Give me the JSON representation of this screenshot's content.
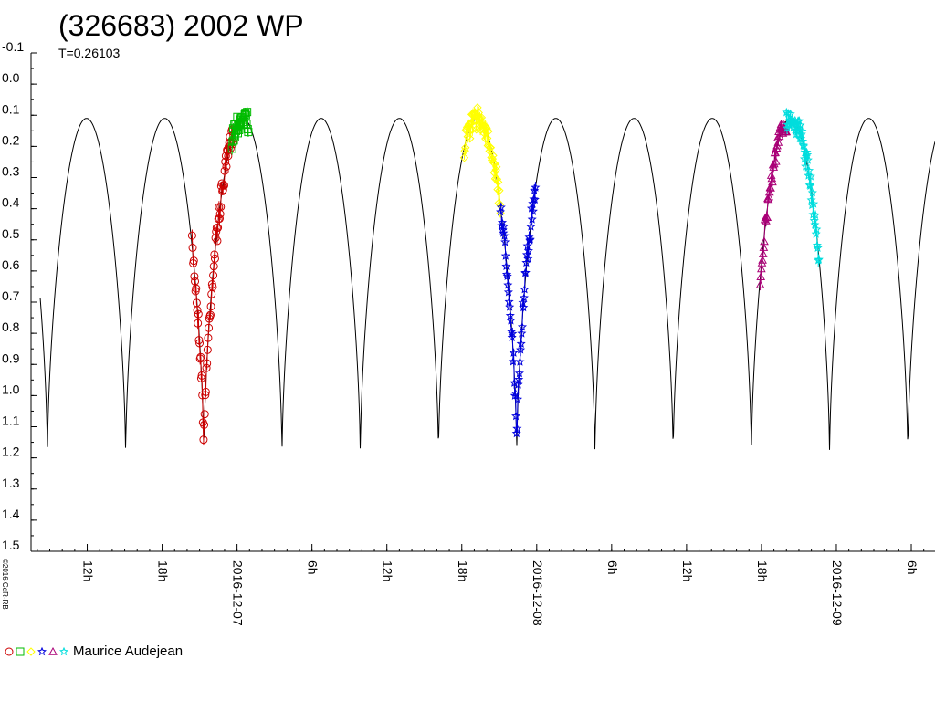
{
  "chart_data": {
    "type": "scatter",
    "title": "(326683) 2002 WP",
    "subtitle": "T=0.26103",
    "copyright": "©2016 CdR-RB",
    "ylim": [
      -0.1,
      1.5
    ],
    "y_inverted": true,
    "y_ticks": [
      "-0.1",
      "0.0",
      "0.1",
      "0.2",
      "0.3",
      "0.4",
      "0.5",
      "0.6",
      "0.7",
      "0.8",
      "0.9",
      "1.0",
      "1.1",
      "1.2",
      "1.3",
      "1.4",
      "1.5"
    ],
    "xlim_hours": [
      7.5,
      79.9
    ],
    "x_ticks": [
      {
        "hour": 12,
        "label": "12h"
      },
      {
        "hour": 18,
        "label": "18h"
      },
      {
        "hour": 24,
        "label": "2016-12-07"
      },
      {
        "hour": 30,
        "label": "6h"
      },
      {
        "hour": 36,
        "label": "12h"
      },
      {
        "hour": 42,
        "label": "18h"
      },
      {
        "hour": 48,
        "label": "2016-12-08"
      },
      {
        "hour": 54,
        "label": "6h"
      },
      {
        "hour": 60,
        "label": "12h"
      },
      {
        "hour": 66,
        "label": "18h"
      },
      {
        "hour": 72,
        "label": "2016-12-09"
      },
      {
        "hour": 78,
        "label": "6h"
      }
    ],
    "model": {
      "period_hours": 6.26472,
      "minimum_hours": 8.81,
      "amplitude": 1.09,
      "mag_min": 0.1,
      "mag_max": 1.2
    },
    "legend": {
      "label": "Maurice Audejean"
    },
    "series": [
      {
        "symbol": "circle",
        "color": "#cc0000",
        "start": 20.4,
        "end": 23.7
      },
      {
        "symbol": "square",
        "color": "#00bb00",
        "start": 23.6,
        "end": 24.9
      },
      {
        "symbol": "diamond",
        "color": "#ffff00",
        "start": 42.2,
        "end": 45.1
      },
      {
        "symbol": "star",
        "color": "#0000dd",
        "start": 45.1,
        "end": 47.9
      },
      {
        "symbol": "triangle",
        "color": "#aa0077",
        "start": 65.9,
        "end": 68.0
      },
      {
        "symbol": "star",
        "color": "#00dddd",
        "start": 68.0,
        "end": 70.6
      }
    ]
  }
}
